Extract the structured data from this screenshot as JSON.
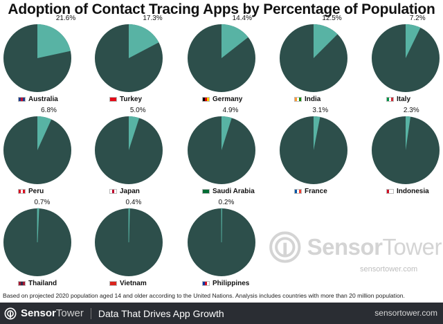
{
  "header": {
    "title": "Adoption of Contact Tracing Apps by Percentage of Population"
  },
  "colors": {
    "pie_base": "#2d4f4b",
    "pie_slice": "#58b3a4",
    "footer_bg": "#2a2d33"
  },
  "chart_data": {
    "type": "pie",
    "title": "Adoption of Contact Tracing Apps by Percentage of Population",
    "unit": "%",
    "items": [
      {
        "country": "Australia",
        "value": 21.6,
        "label": "21.6%",
        "flag": [
          "#1f3a8a",
          "#c8102e",
          "#1f3a8a"
        ]
      },
      {
        "country": "Turkey",
        "value": 17.3,
        "label": "17.3%",
        "flag": [
          "#e30a17",
          "#e30a17",
          "#e30a17"
        ]
      },
      {
        "country": "Germany",
        "value": 14.4,
        "label": "14.4%",
        "flag": [
          "#000000",
          "#dd0000",
          "#ffce00"
        ]
      },
      {
        "country": "India",
        "value": 12.5,
        "label": "12.5%",
        "flag": [
          "#ff9933",
          "#ffffff",
          "#138808"
        ]
      },
      {
        "country": "Italy",
        "value": 7.2,
        "label": "7.2%",
        "flag": [
          "#009246",
          "#ffffff",
          "#ce2b37"
        ]
      },
      {
        "country": "Peru",
        "value": 6.8,
        "label": "6.8%",
        "flag": [
          "#d91023",
          "#ffffff",
          "#d91023"
        ]
      },
      {
        "country": "Japan",
        "value": 5.0,
        "label": "5.0%",
        "flag": [
          "#ffffff",
          "#bc002d",
          "#ffffff"
        ]
      },
      {
        "country": "Saudi Arabia",
        "value": 4.9,
        "label": "4.9%",
        "flag": [
          "#006c35",
          "#006c35",
          "#006c35"
        ]
      },
      {
        "country": "France",
        "value": 3.1,
        "label": "3.1%",
        "flag": [
          "#0055a4",
          "#ffffff",
          "#ef4135"
        ]
      },
      {
        "country": "Indonesia",
        "value": 2.3,
        "label": "2.3%",
        "flag": [
          "#ce1126",
          "#ffffff",
          "#ffffff"
        ]
      },
      {
        "country": "Thailand",
        "value": 0.7,
        "label": "0.7%",
        "flag": [
          "#a51931",
          "#2d2a4a",
          "#a51931"
        ]
      },
      {
        "country": "Vietnam",
        "value": 0.4,
        "label": "0.4%",
        "flag": [
          "#da251d",
          "#da251d",
          "#da251d"
        ]
      },
      {
        "country": "Philippines",
        "value": 0.2,
        "label": "0.2%",
        "flag": [
          "#0038a8",
          "#ce1126",
          "#ffffff"
        ]
      }
    ]
  },
  "watermark": {
    "brand_bold": "Sensor",
    "brand_light": "Tower",
    "url": "sensortower.com"
  },
  "footnote": "Based on projected 2020 population aged 14 and older according to the United Nations. Analysis includes countries with more than 20 million population.",
  "footer": {
    "brand_bold": "Sensor",
    "brand_light": "Tower",
    "tagline": "Data That Drives App Growth",
    "url": "sensortower.com"
  }
}
